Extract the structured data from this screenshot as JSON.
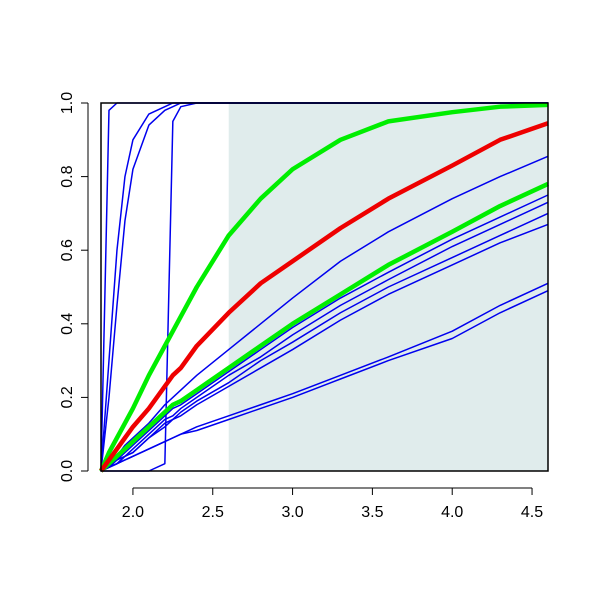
{
  "chart_data": {
    "type": "line",
    "x": [
      1.8,
      1.85,
      1.9,
      1.95,
      2.0,
      2.1,
      2.2,
      2.25,
      2.3,
      2.4,
      2.6,
      2.8,
      3.0,
      3.3,
      3.6,
      4.0,
      4.3,
      4.6
    ],
    "xlim": [
      1.8,
      4.6
    ],
    "ylim": [
      0,
      1
    ],
    "xticks": [
      {
        "value": 2.0,
        "label": "2.0"
      },
      {
        "value": 2.5,
        "label": "2.5"
      },
      {
        "value": 3.0,
        "label": "3.0"
      },
      {
        "value": 3.5,
        "label": "3.5"
      },
      {
        "value": 4.0,
        "label": "4.0"
      },
      {
        "value": 4.5,
        "label": "4.5"
      }
    ],
    "yticks": [
      {
        "value": 0,
        "label": "0.0"
      },
      {
        "value": 0.2,
        "label": "0.2"
      },
      {
        "value": 0.4,
        "label": "0.4"
      },
      {
        "value": 0.6,
        "label": "0.6"
      },
      {
        "value": 0.8,
        "label": "0.8"
      },
      {
        "value": 1.0,
        "label": "1.0"
      }
    ],
    "shaded_xrange": [
      2.6,
      4.6
    ],
    "shade_color": "#e0ecec",
    "series": [
      {
        "color": "#0000ee",
        "width": 1.5,
        "values": [
          0,
          0.98,
          1,
          1,
          1,
          1,
          1,
          1,
          1,
          1,
          1,
          1,
          1,
          1,
          1,
          1,
          1,
          1
        ]
      },
      {
        "color": "#0000ee",
        "width": 1.5,
        "values": [
          0,
          0.3,
          0.6,
          0.8,
          0.9,
          0.97,
          0.99,
          1,
          1,
          1,
          1,
          1,
          1,
          1,
          1,
          1,
          1,
          1
        ]
      },
      {
        "color": "#0000ee",
        "width": 1.5,
        "values": [
          0,
          0.2,
          0.45,
          0.68,
          0.82,
          0.94,
          0.98,
          0.99,
          1,
          1,
          1,
          1,
          1,
          1,
          1,
          1,
          1,
          1
        ]
      },
      {
        "color": "#0000ee",
        "width": 1.5,
        "values": [
          0,
          0,
          0,
          0,
          0,
          0,
          0.02,
          0.95,
          0.99,
          1,
          1,
          1,
          1,
          1,
          1,
          1,
          1,
          1
        ]
      },
      {
        "color": "#0000ee",
        "width": 1.5,
        "values": [
          0,
          0.02,
          0.04,
          0.07,
          0.09,
          0.13,
          0.18,
          0.2,
          0.22,
          0.26,
          0.33,
          0.4,
          0.47,
          0.57,
          0.65,
          0.74,
          0.8,
          0.855
        ]
      },
      {
        "color": "#0000ee",
        "width": 1.5,
        "values": [
          0,
          0.02,
          0.03,
          0.05,
          0.07,
          0.11,
          0.15,
          0.17,
          0.18,
          0.21,
          0.27,
          0.33,
          0.39,
          0.47,
          0.54,
          0.63,
          0.69,
          0.75
        ]
      },
      {
        "color": "#0000ee",
        "width": 1.5,
        "values": [
          0,
          0.01,
          0.03,
          0.04,
          0.06,
          0.1,
          0.14,
          0.15,
          0.17,
          0.2,
          0.26,
          0.31,
          0.37,
          0.45,
          0.52,
          0.61,
          0.67,
          0.73
        ]
      },
      {
        "color": "#0000ee",
        "width": 1.5,
        "values": [
          0,
          0.01,
          0.02,
          0.04,
          0.05,
          0.09,
          0.13,
          0.14,
          0.16,
          0.19,
          0.24,
          0.3,
          0.35,
          0.43,
          0.5,
          0.58,
          0.64,
          0.7
        ]
      },
      {
        "color": "#0000ee",
        "width": 1.5,
        "values": [
          0,
          0.01,
          0.02,
          0.04,
          0.05,
          0.09,
          0.12,
          0.14,
          0.15,
          0.18,
          0.23,
          0.28,
          0.33,
          0.41,
          0.48,
          0.56,
          0.62,
          0.67
        ]
      },
      {
        "color": "#0000ee",
        "width": 1.5,
        "values": [
          0,
          0.01,
          0.02,
          0.03,
          0.04,
          0.06,
          0.08,
          0.09,
          0.1,
          0.12,
          0.15,
          0.18,
          0.21,
          0.26,
          0.31,
          0.38,
          0.45,
          0.51
        ]
      },
      {
        "color": "#0000ee",
        "width": 1.5,
        "values": [
          0,
          0.01,
          0.02,
          0.03,
          0.04,
          0.06,
          0.08,
          0.09,
          0.1,
          0.11,
          0.14,
          0.17,
          0.2,
          0.25,
          0.3,
          0.36,
          0.43,
          0.49
        ]
      },
      {
        "color": "#00ee00",
        "width": 4.5,
        "values": [
          0,
          0.05,
          0.09,
          0.13,
          0.17,
          0.26,
          0.34,
          0.38,
          0.42,
          0.5,
          0.64,
          0.74,
          0.82,
          0.9,
          0.95,
          0.975,
          0.99,
          0.995
        ]
      },
      {
        "color": "#00ee00",
        "width": 4.5,
        "values": [
          0,
          0.02,
          0.04,
          0.06,
          0.08,
          0.12,
          0.16,
          0.18,
          0.19,
          0.22,
          0.28,
          0.34,
          0.4,
          0.48,
          0.56,
          0.65,
          0.72,
          0.78
        ]
      },
      {
        "color": "#ee0000",
        "width": 4.5,
        "values": [
          0,
          0.03,
          0.06,
          0.09,
          0.12,
          0.17,
          0.23,
          0.26,
          0.28,
          0.34,
          0.43,
          0.51,
          0.57,
          0.66,
          0.74,
          0.83,
          0.9,
          0.945
        ]
      }
    ]
  }
}
